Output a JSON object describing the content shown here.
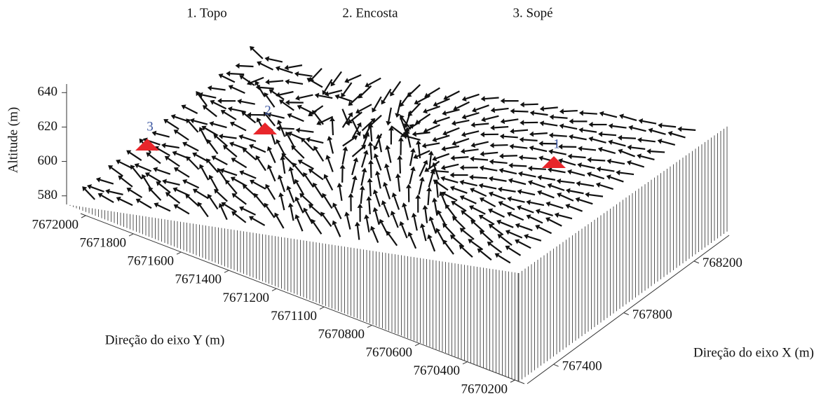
{
  "chart_data": {
    "type": "vector-field-3d",
    "legend": [
      "1. Topo",
      "2. Encosta",
      "3. Sopé"
    ],
    "zlabel": "Altitude (m)",
    "ylabel": "Direção do eixo Y (m)",
    "xlabel": "Direção do eixo X (m)",
    "zlim": [
      575,
      645
    ],
    "zticks": [
      580,
      600,
      620,
      640
    ],
    "yticks": [
      7672000,
      7671800,
      7671600,
      7671400,
      7671200,
      7671100,
      7670800,
      7670600,
      7670400,
      7670200
    ],
    "xlim": [
      767250,
      768400
    ],
    "xticks": [
      767400,
      767800,
      768200
    ],
    "markers": [
      "1",
      "2",
      "3"
    ],
    "marker_color": "#e8262b",
    "marker_label_color": "#3a55a0"
  }
}
